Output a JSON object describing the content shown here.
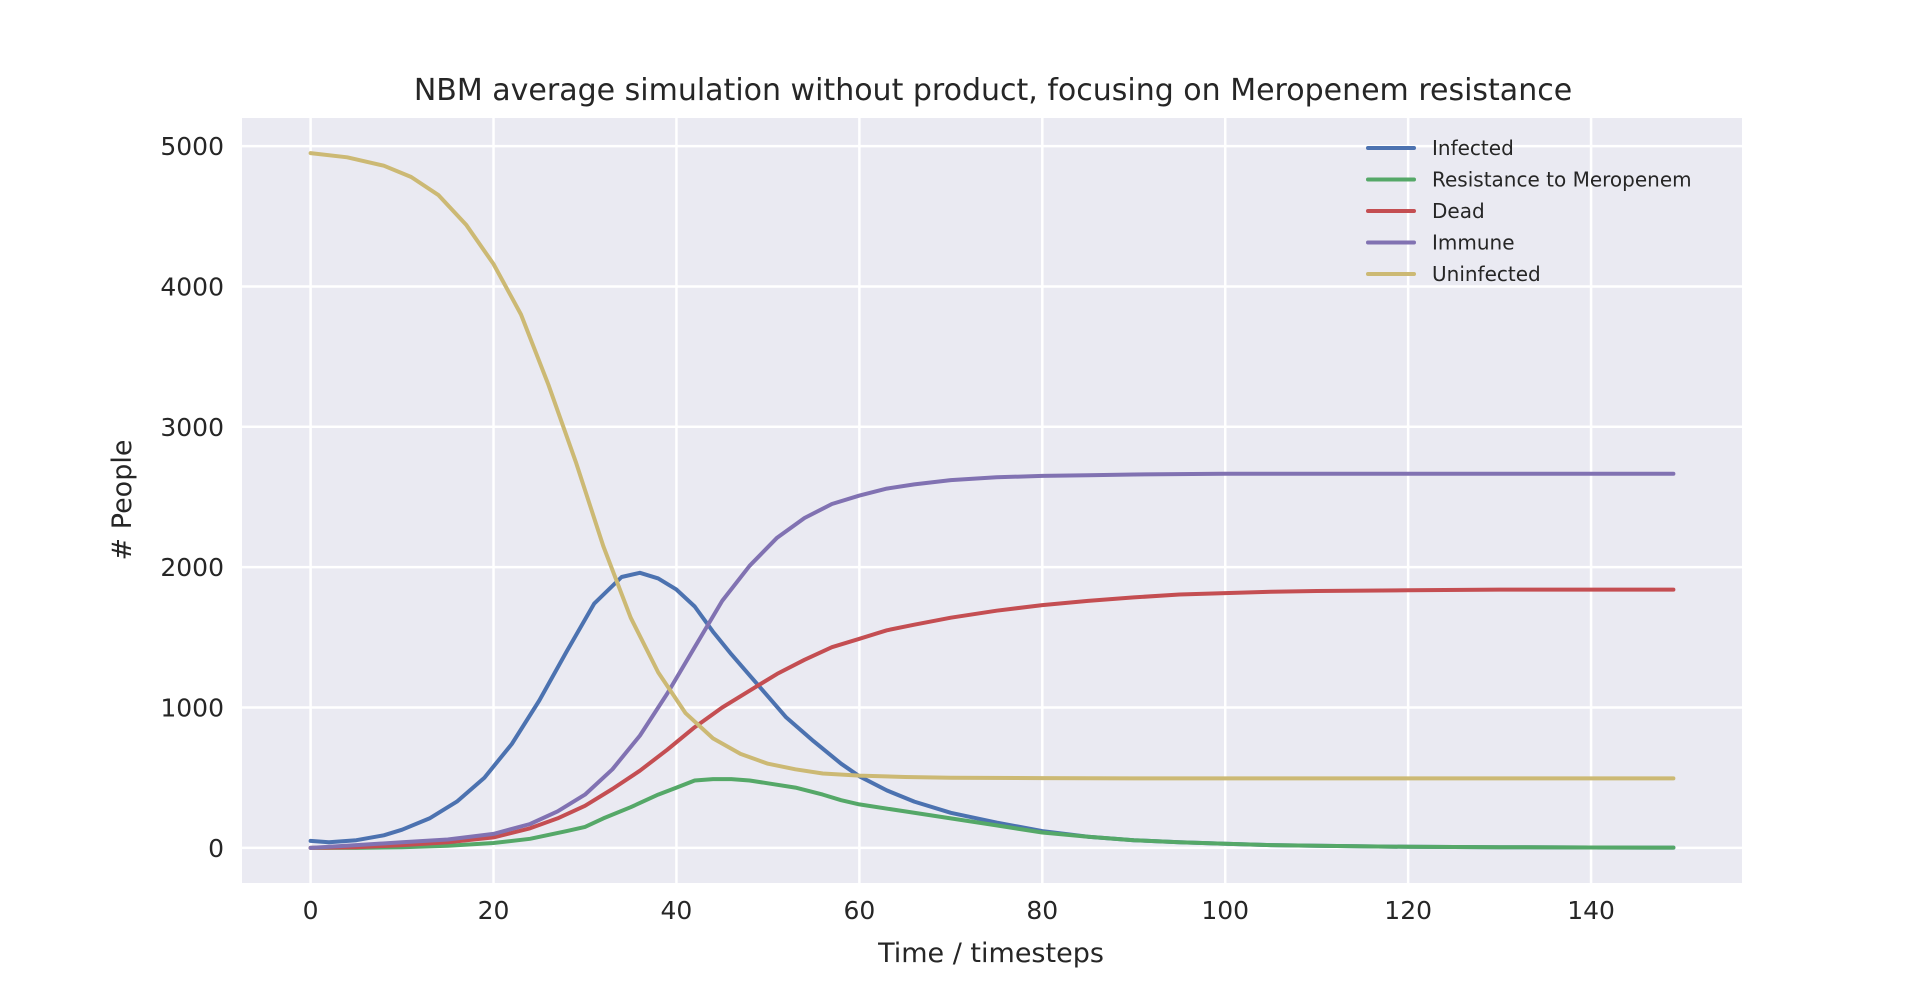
{
  "chart_data": {
    "type": "line",
    "title": "NBM average simulation without product, focusing on Meropenem resistance",
    "xlabel": "Time / timesteps",
    "ylabel": "# People",
    "xlim": [
      -7.5,
      156.5
    ],
    "ylim": [
      -250,
      5200
    ],
    "xticks": [
      0,
      20,
      40,
      60,
      80,
      100,
      120,
      140
    ],
    "yticks": [
      0,
      1000,
      2000,
      3000,
      4000,
      5000
    ],
    "grid": true,
    "legend_position": "top-right",
    "background_color": "#eaeaf2",
    "series": [
      {
        "name": "Infected",
        "color": "#4c72b0",
        "points": [
          [
            0,
            50
          ],
          [
            2,
            40
          ],
          [
            5,
            55
          ],
          [
            8,
            90
          ],
          [
            10,
            130
          ],
          [
            13,
            210
          ],
          [
            16,
            330
          ],
          [
            19,
            500
          ],
          [
            22,
            740
          ],
          [
            25,
            1050
          ],
          [
            28,
            1400
          ],
          [
            31,
            1740
          ],
          [
            34,
            1930
          ],
          [
            36,
            1960
          ],
          [
            38,
            1920
          ],
          [
            40,
            1840
          ],
          [
            42,
            1720
          ],
          [
            44,
            1540
          ],
          [
            46,
            1380
          ],
          [
            48,
            1230
          ],
          [
            50,
            1080
          ],
          [
            52,
            930
          ],
          [
            55,
            760
          ],
          [
            58,
            600
          ],
          [
            60,
            510
          ],
          [
            63,
            410
          ],
          [
            66,
            330
          ],
          [
            70,
            250
          ],
          [
            75,
            180
          ],
          [
            80,
            120
          ],
          [
            85,
            80
          ],
          [
            90,
            55
          ],
          [
            95,
            40
          ],
          [
            100,
            30
          ],
          [
            105,
            20
          ],
          [
            110,
            15
          ],
          [
            120,
            8
          ],
          [
            130,
            5
          ],
          [
            140,
            3
          ],
          [
            149,
            2
          ]
        ]
      },
      {
        "name": "Resistance to Meropenem",
        "color": "#55a868",
        "points": [
          [
            0,
            0
          ],
          [
            5,
            0
          ],
          [
            10,
            5
          ],
          [
            15,
            15
          ],
          [
            20,
            35
          ],
          [
            24,
            65
          ],
          [
            28,
            120
          ],
          [
            30,
            150
          ],
          [
            32,
            210
          ],
          [
            35,
            290
          ],
          [
            38,
            380
          ],
          [
            40,
            430
          ],
          [
            42,
            480
          ],
          [
            44,
            490
          ],
          [
            46,
            490
          ],
          [
            48,
            480
          ],
          [
            50,
            460
          ],
          [
            53,
            430
          ],
          [
            56,
            380
          ],
          [
            58,
            340
          ],
          [
            60,
            310
          ],
          [
            65,
            260
          ],
          [
            70,
            210
          ],
          [
            75,
            160
          ],
          [
            80,
            110
          ],
          [
            85,
            80
          ],
          [
            90,
            55
          ],
          [
            95,
            40
          ],
          [
            100,
            30
          ],
          [
            105,
            20
          ],
          [
            110,
            15
          ],
          [
            120,
            8
          ],
          [
            130,
            5
          ],
          [
            140,
            3
          ],
          [
            149,
            2
          ]
        ]
      },
      {
        "name": "Dead",
        "color": "#c44e52",
        "points": [
          [
            0,
            0
          ],
          [
            5,
            5
          ],
          [
            10,
            20
          ],
          [
            15,
            40
          ],
          [
            20,
            75
          ],
          [
            24,
            140
          ],
          [
            27,
            210
          ],
          [
            30,
            300
          ],
          [
            33,
            420
          ],
          [
            36,
            550
          ],
          [
            39,
            700
          ],
          [
            42,
            860
          ],
          [
            45,
            1000
          ],
          [
            48,
            1120
          ],
          [
            51,
            1240
          ],
          [
            54,
            1340
          ],
          [
            57,
            1430
          ],
          [
            60,
            1490
          ],
          [
            63,
            1550
          ],
          [
            66,
            1590
          ],
          [
            70,
            1640
          ],
          [
            75,
            1690
          ],
          [
            80,
            1730
          ],
          [
            85,
            1760
          ],
          [
            90,
            1785
          ],
          [
            95,
            1805
          ],
          [
            100,
            1815
          ],
          [
            105,
            1825
          ],
          [
            110,
            1830
          ],
          [
            120,
            1835
          ],
          [
            130,
            1840
          ],
          [
            140,
            1840
          ],
          [
            149,
            1840
          ]
        ]
      },
      {
        "name": "Immune",
        "color": "#8172b2",
        "points": [
          [
            0,
            0
          ],
          [
            5,
            20
          ],
          [
            10,
            40
          ],
          [
            15,
            60
          ],
          [
            20,
            100
          ],
          [
            24,
            170
          ],
          [
            27,
            260
          ],
          [
            30,
            380
          ],
          [
            33,
            560
          ],
          [
            36,
            800
          ],
          [
            39,
            1100
          ],
          [
            42,
            1430
          ],
          [
            45,
            1760
          ],
          [
            48,
            2010
          ],
          [
            51,
            2210
          ],
          [
            54,
            2350
          ],
          [
            57,
            2450
          ],
          [
            60,
            2510
          ],
          [
            63,
            2560
          ],
          [
            66,
            2590
          ],
          [
            70,
            2620
          ],
          [
            75,
            2640
          ],
          [
            80,
            2650
          ],
          [
            85,
            2655
          ],
          [
            90,
            2660
          ],
          [
            100,
            2665
          ],
          [
            110,
            2665
          ],
          [
            120,
            2665
          ],
          [
            130,
            2665
          ],
          [
            140,
            2665
          ],
          [
            149,
            2665
          ]
        ]
      },
      {
        "name": "Uninfected",
        "color": "#ccb974",
        "points": [
          [
            0,
            4950
          ],
          [
            4,
            4920
          ],
          [
            8,
            4860
          ],
          [
            11,
            4780
          ],
          [
            14,
            4650
          ],
          [
            17,
            4440
          ],
          [
            20,
            4160
          ],
          [
            23,
            3800
          ],
          [
            26,
            3300
          ],
          [
            29,
            2750
          ],
          [
            32,
            2150
          ],
          [
            35,
            1640
          ],
          [
            38,
            1250
          ],
          [
            41,
            960
          ],
          [
            44,
            780
          ],
          [
            47,
            670
          ],
          [
            50,
            600
          ],
          [
            53,
            560
          ],
          [
            56,
            530
          ],
          [
            60,
            515
          ],
          [
            65,
            505
          ],
          [
            70,
            500
          ],
          [
            80,
            497
          ],
          [
            90,
            495
          ],
          [
            100,
            495
          ],
          [
            110,
            495
          ],
          [
            120,
            495
          ],
          [
            130,
            495
          ],
          [
            140,
            495
          ],
          [
            149,
            495
          ]
        ]
      }
    ]
  }
}
